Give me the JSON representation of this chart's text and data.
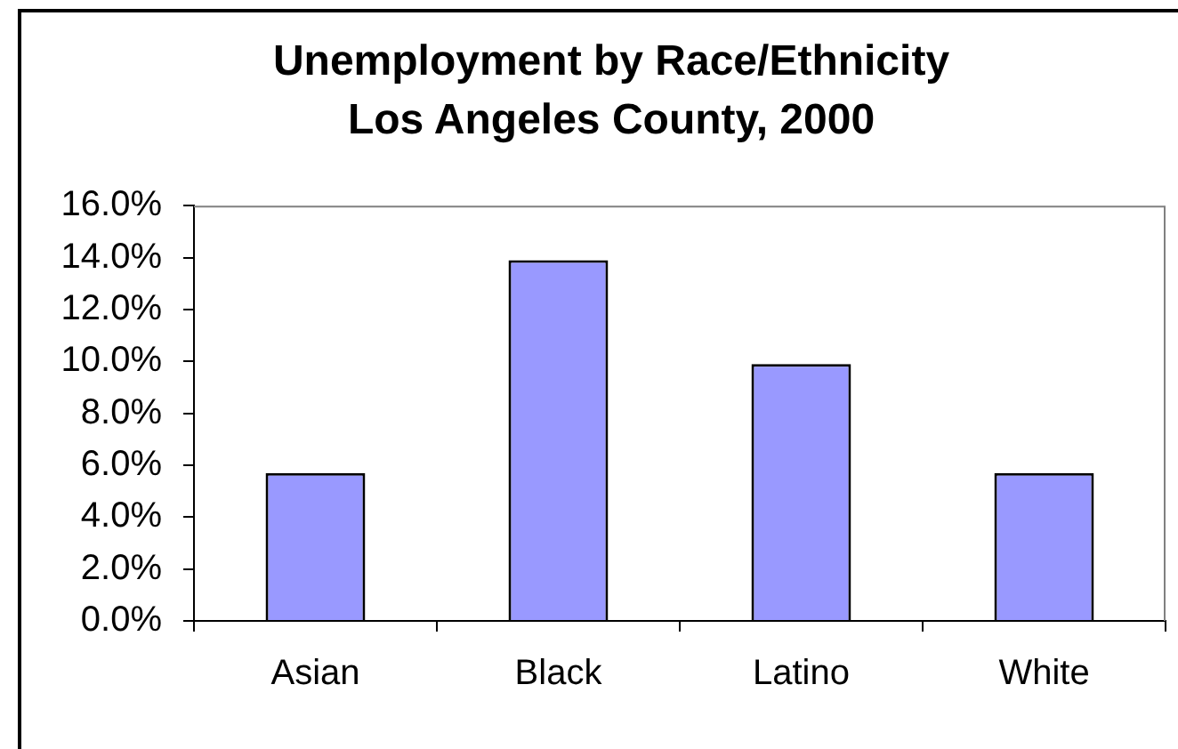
{
  "chart_data": {
    "type": "bar",
    "title": "Unemployment by Race/Ethnicity",
    "subtitle": "Los Angeles County, 2000",
    "categories": [
      "Asian",
      "Black",
      "Latino",
      "White"
    ],
    "values": [
      5.7,
      13.9,
      9.9,
      5.7
    ],
    "color": "#9999ff",
    "ylim": [
      0,
      16
    ],
    "yticks": [
      {
        "value": 0,
        "label": "0.0%"
      },
      {
        "value": 2,
        "label": "2.0%"
      },
      {
        "value": 4,
        "label": "4.0%"
      },
      {
        "value": 6,
        "label": "6.0%"
      },
      {
        "value": 8,
        "label": "8.0%"
      },
      {
        "value": 10,
        "label": "10.0%"
      },
      {
        "value": 12,
        "label": "12.0%"
      },
      {
        "value": 14,
        "label": "14.0%"
      },
      {
        "value": 16,
        "label": "16.0%"
      }
    ],
    "grid": false,
    "legend": false
  }
}
